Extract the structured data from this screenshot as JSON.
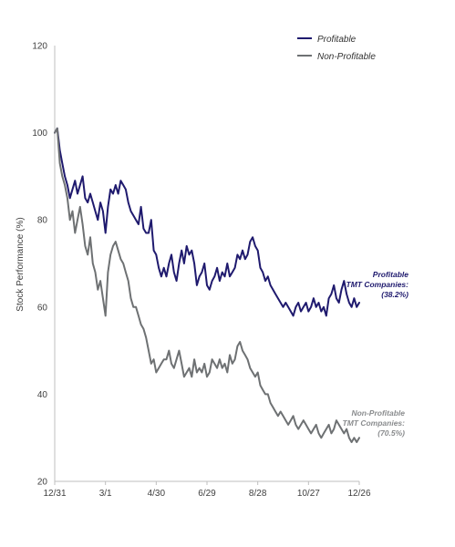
{
  "chart_data": {
    "type": "line",
    "title": "",
    "xlabel": "",
    "ylabel": "Stock Performance (%)",
    "ylim": [
      20,
      120
    ],
    "yticks": [
      20,
      40,
      60,
      80,
      100,
      120
    ],
    "xlim": [
      0,
      360
    ],
    "xticks": [
      {
        "day": 0,
        "label": "12/31"
      },
      {
        "day": 60,
        "label": "3/1"
      },
      {
        "day": 120,
        "label": "4/30"
      },
      {
        "day": 180,
        "label": "6/29"
      },
      {
        "day": 240,
        "label": "8/28"
      },
      {
        "day": 300,
        "label": "10/27"
      },
      {
        "day": 360,
        "label": "12/26"
      }
    ],
    "grid": false,
    "legend": {
      "position": "top-right"
    },
    "series": [
      {
        "name": "Profitable",
        "color": "#1f1a6e",
        "x": [
          0,
          3,
          6,
          9,
          12,
          15,
          18,
          21,
          24,
          27,
          30,
          33,
          36,
          39,
          42,
          45,
          48,
          51,
          54,
          57,
          60,
          63,
          66,
          69,
          72,
          75,
          78,
          81,
          84,
          87,
          90,
          93,
          96,
          99,
          102,
          105,
          108,
          111,
          114,
          117,
          120,
          123,
          126,
          129,
          132,
          135,
          138,
          141,
          144,
          147,
          150,
          153,
          156,
          159,
          162,
          165,
          168,
          171,
          174,
          177,
          180,
          183,
          186,
          189,
          192,
          195,
          198,
          201,
          204,
          207,
          210,
          213,
          216,
          219,
          222,
          225,
          228,
          231,
          234,
          237,
          240,
          243,
          246,
          249,
          252,
          255,
          258,
          261,
          264,
          267,
          270,
          273,
          276,
          279,
          282,
          285,
          288,
          291,
          294,
          297,
          300,
          303,
          306,
          309,
          312,
          315,
          318,
          321,
          324,
          327,
          330,
          333,
          336,
          339,
          342,
          345,
          348,
          351,
          354,
          357,
          360
        ],
        "values": [
          100,
          101,
          96,
          93,
          90,
          88,
          85,
          87,
          89,
          86,
          88,
          90,
          85,
          84,
          86,
          84,
          82,
          80,
          84,
          82,
          77,
          83,
          87,
          86,
          88,
          86,
          89,
          88,
          87,
          84,
          82,
          81,
          80,
          79,
          83,
          78,
          77,
          77,
          80,
          73,
          72,
          69,
          67,
          69,
          67,
          70,
          72,
          68,
          66,
          70,
          73,
          70,
          74,
          72,
          73,
          70,
          65,
          67,
          68,
          70,
          65,
          64,
          66,
          67,
          69,
          66,
          68,
          67,
          70,
          67,
          68,
          69,
          72,
          71,
          73,
          71,
          72,
          75,
          76,
          74,
          73,
          69,
          68,
          66,
          67,
          65,
          64,
          63,
          62,
          61,
          60,
          61,
          60,
          59,
          58,
          60,
          61,
          59,
          60,
          61,
          59,
          60,
          62,
          60,
          61,
          59,
          60,
          58,
          62,
          63,
          65,
          62,
          61,
          64,
          66,
          63,
          61,
          60,
          62,
          60,
          61
        ]
      },
      {
        "name": "Non-Profitable",
        "color": "#6e7173",
        "x": [
          0,
          3,
          6,
          9,
          12,
          15,
          18,
          21,
          24,
          27,
          30,
          33,
          36,
          39,
          42,
          45,
          48,
          51,
          54,
          57,
          60,
          63,
          66,
          69,
          72,
          75,
          78,
          81,
          84,
          87,
          90,
          93,
          96,
          99,
          102,
          105,
          108,
          111,
          114,
          117,
          120,
          123,
          126,
          129,
          132,
          135,
          138,
          141,
          144,
          147,
          150,
          153,
          156,
          159,
          162,
          165,
          168,
          171,
          174,
          177,
          180,
          183,
          186,
          189,
          192,
          195,
          198,
          201,
          204,
          207,
          210,
          213,
          216,
          219,
          222,
          225,
          228,
          231,
          234,
          237,
          240,
          243,
          246,
          249,
          252,
          255,
          258,
          261,
          264,
          267,
          270,
          273,
          276,
          279,
          282,
          285,
          288,
          291,
          294,
          297,
          300,
          303,
          306,
          309,
          312,
          315,
          318,
          321,
          324,
          327,
          330,
          333,
          336,
          339,
          342,
          345,
          348,
          351,
          354,
          357,
          360
        ],
        "values": [
          100,
          101,
          93,
          90,
          88,
          85,
          80,
          82,
          77,
          80,
          83,
          79,
          74,
          72,
          76,
          70,
          68,
          64,
          66,
          62,
          58,
          68,
          72,
          74,
          75,
          73,
          71,
          70,
          68,
          66,
          62,
          60,
          60,
          58,
          56,
          55,
          53,
          50,
          47,
          48,
          45,
          46,
          47,
          48,
          48,
          50,
          47,
          46,
          48,
          50,
          47,
          44,
          45,
          46,
          44,
          48,
          45,
          46,
          45,
          47,
          44,
          45,
          48,
          47,
          46,
          48,
          46,
          47,
          45,
          49,
          47,
          48,
          51,
          52,
          50,
          49,
          48,
          46,
          45,
          44,
          45,
          42,
          41,
          40,
          40,
          38,
          37,
          36,
          35,
          36,
          35,
          34,
          33,
          34,
          35,
          33,
          32,
          33,
          34,
          33,
          32,
          31,
          32,
          33,
          31,
          30,
          31,
          32,
          33,
          31,
          32,
          34,
          33,
          32,
          31,
          32,
          30,
          29,
          30,
          29,
          30
        ]
      }
    ],
    "annotations": [
      {
        "series": "Profitable",
        "lines": [
          "Profitable",
          "TMT Companies:",
          "(38.2%)"
        ]
      },
      {
        "series": "Non-Profitable",
        "lines": [
          "Non-Profitable",
          "TMT Companies:",
          "(70.5%)"
        ]
      }
    ]
  }
}
